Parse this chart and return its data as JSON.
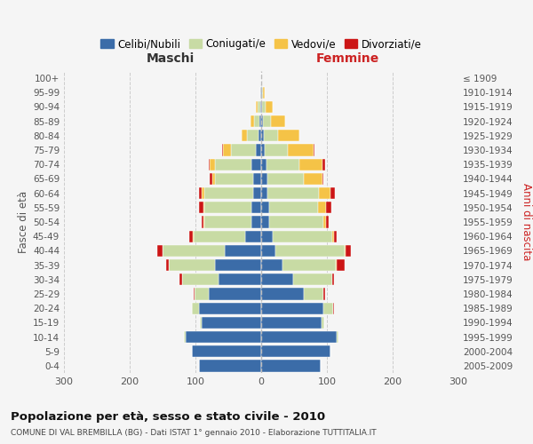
{
  "age_groups": [
    "100+",
    "95-99",
    "90-94",
    "85-89",
    "80-84",
    "75-79",
    "70-74",
    "65-69",
    "60-64",
    "55-59",
    "50-54",
    "45-49",
    "40-44",
    "35-39",
    "30-34",
    "25-29",
    "20-24",
    "15-19",
    "10-14",
    "5-9",
    "0-4"
  ],
  "birth_years": [
    "≤ 1909",
    "1910-1914",
    "1915-1919",
    "1920-1924",
    "1925-1929",
    "1930-1934",
    "1935-1939",
    "1940-1944",
    "1945-1949",
    "1950-1954",
    "1955-1959",
    "1960-1964",
    "1965-1969",
    "1970-1974",
    "1975-1979",
    "1980-1984",
    "1985-1989",
    "1990-1994",
    "1995-1999",
    "2000-2004",
    "2005-2009"
  ],
  "males": {
    "celibi": [
      0,
      1,
      2,
      3,
      4,
      8,
      15,
      12,
      12,
      15,
      15,
      25,
      55,
      70,
      65,
      80,
      95,
      90,
      115,
      105,
      95
    ],
    "coniugati": [
      0,
      1,
      4,
      8,
      18,
      38,
      55,
      58,
      75,
      72,
      72,
      78,
      95,
      70,
      55,
      22,
      10,
      3,
      2,
      0,
      0
    ],
    "vedovi": [
      0,
      0,
      2,
      5,
      8,
      12,
      8,
      5,
      3,
      1,
      1,
      1,
      0,
      0,
      0,
      0,
      0,
      0,
      0,
      0,
      0
    ],
    "divorziati": [
      0,
      0,
      0,
      0,
      0,
      2,
      2,
      3,
      4,
      6,
      3,
      5,
      8,
      5,
      4,
      1,
      0,
      0,
      0,
      0,
      0
    ]
  },
  "females": {
    "nubili": [
      0,
      1,
      2,
      3,
      4,
      5,
      8,
      10,
      10,
      12,
      12,
      18,
      22,
      32,
      48,
      65,
      95,
      92,
      115,
      105,
      90
    ],
    "coniugate": [
      0,
      2,
      5,
      12,
      22,
      35,
      50,
      55,
      78,
      75,
      82,
      90,
      105,
      82,
      60,
      30,
      15,
      4,
      2,
      0,
      0
    ],
    "vedove": [
      0,
      2,
      10,
      22,
      32,
      40,
      35,
      28,
      18,
      12,
      5,
      3,
      1,
      1,
      0,
      0,
      0,
      0,
      0,
      0,
      0
    ],
    "divorziate": [
      0,
      0,
      0,
      0,
      0,
      1,
      4,
      2,
      6,
      8,
      4,
      4,
      8,
      12,
      3,
      2,
      1,
      0,
      0,
      0,
      0
    ]
  },
  "colors": {
    "celibi_nubili": "#3b6ca8",
    "coniugati": "#c8dba4",
    "vedovi": "#f5c347",
    "divorziati": "#cc1515"
  },
  "title": "Popolazione per età, sesso e stato civile - 2010",
  "subtitle": "COMUNE DI VAL BREMBILLA (BG) - Dati ISTAT 1° gennaio 2010 - Elaborazione TUTTITALIA.IT",
  "label_maschi": "Maschi",
  "label_femmine": "Femmine",
  "ylabel_left": "Fasce di età",
  "ylabel_right": "Anni di nascita",
  "xlim": 300,
  "background_color": "#f5f5f5",
  "legend_labels": [
    "Celibi/Nubili",
    "Coniugati/e",
    "Vedovi/e",
    "Divorziati/e"
  ]
}
